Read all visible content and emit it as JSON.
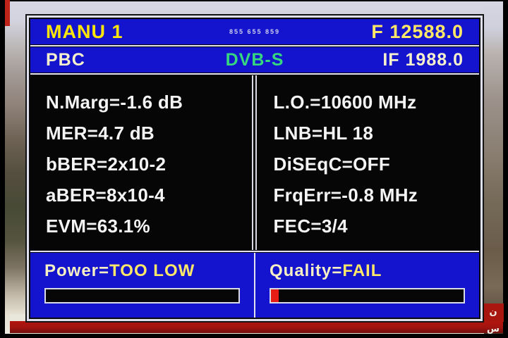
{
  "title_bar": {
    "mode": "MANU 1",
    "small_text": "855 655 859",
    "frequency": "F 12588.0"
  },
  "info_bar": {
    "channel": "PBC",
    "standard": "DVB-S",
    "if_frequency": "IF 1988.0"
  },
  "metrics_left": [
    "N.Marg=-1.6 dB",
    "MER=4.7 dB",
    "bBER=2x10-2",
    "aBER=8x10-4",
    "EVM=63.1%"
  ],
  "metrics_right": [
    "L.O.=10600 MHz",
    "LNB=HL 18",
    "DiSEqC=OFF",
    "FrqErr=-0.8 MHz",
    "FEC=3/4"
  ],
  "power": {
    "name": "Power=",
    "status": "TOO LOW",
    "bar_percent": 0
  },
  "quality": {
    "name": "Quality=",
    "status": "FAIL",
    "bar_percent": 4
  },
  "background": {
    "ticker_text": "ن س"
  },
  "colors": {
    "panel_blue": "#1414cf",
    "title_yellow": "#ffe60a",
    "value_yellow": "#ffe768",
    "cream_white": "#f6f1cc",
    "dvb_green": "#35d77f",
    "metric_white": "#f4f4f4",
    "bar_fill_red": "#e71c15",
    "ticker_red": "#a8160f"
  }
}
